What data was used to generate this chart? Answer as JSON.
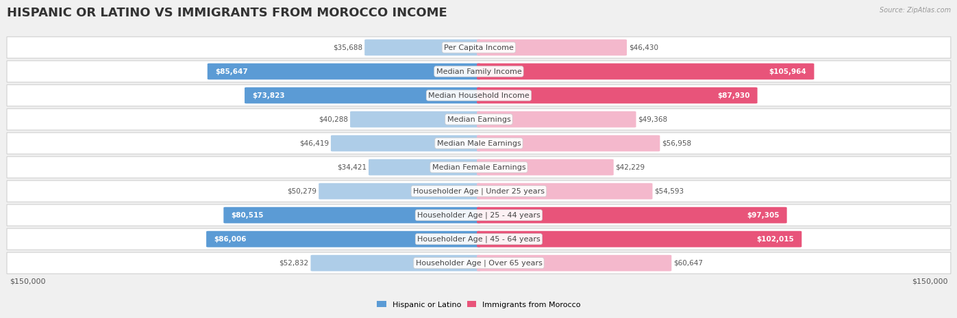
{
  "title": "HISPANIC OR LATINO VS IMMIGRANTS FROM MOROCCO INCOME",
  "source": "Source: ZipAtlas.com",
  "categories": [
    "Per Capita Income",
    "Median Family Income",
    "Median Household Income",
    "Median Earnings",
    "Median Male Earnings",
    "Median Female Earnings",
    "Householder Age | Under 25 years",
    "Householder Age | 25 - 44 years",
    "Householder Age | 45 - 64 years",
    "Householder Age | Over 65 years"
  ],
  "hispanic_values": [
    35688,
    85647,
    73823,
    40288,
    46419,
    34421,
    50279,
    80515,
    86006,
    52832
  ],
  "morocco_values": [
    46430,
    105964,
    87930,
    49368,
    56958,
    42229,
    54593,
    97305,
    102015,
    60647
  ],
  "hispanic_color_light": "#aecde8",
  "hispanic_color_dark": "#5b9bd5",
  "morocco_color_light": "#f4b8cc",
  "morocco_color_dark": "#e8547a",
  "hispanic_threshold": 60000,
  "morocco_threshold": 80000,
  "max_value": 150000,
  "x_label_left": "$150,000",
  "x_label_right": "$150,000",
  "legend_hispanic": "Hispanic or Latino",
  "legend_morocco": "Immigrants from Morocco",
  "background_color": "#f0f0f0",
  "row_bg_color": "#ffffff",
  "row_border_color": "#d0d0d0",
  "title_fontsize": 13,
  "cat_fontsize": 8,
  "value_fontsize": 7.5,
  "axis_label_fontsize": 8,
  "figsize": [
    14.06,
    4.67
  ],
  "dpi": 100
}
